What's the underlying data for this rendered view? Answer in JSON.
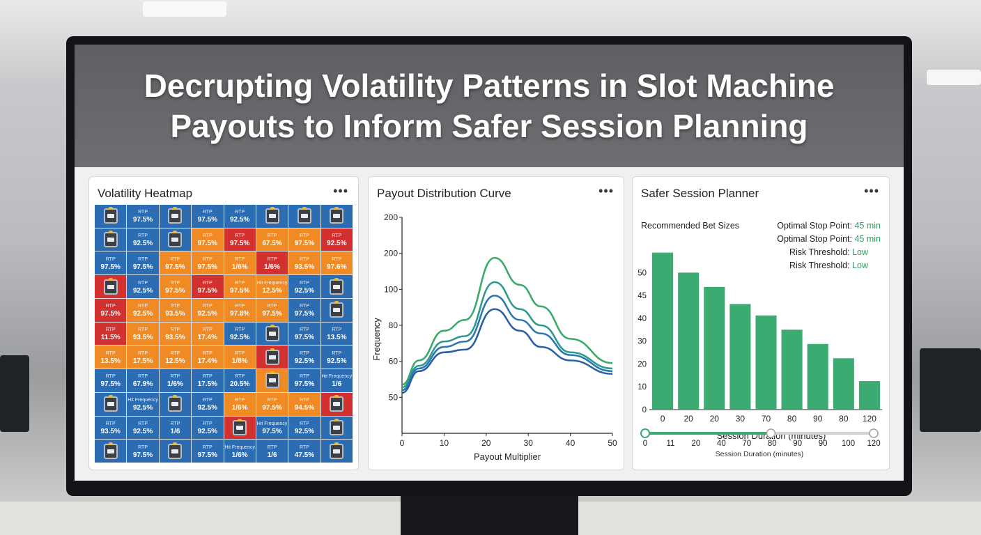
{
  "banner": {
    "line1": "Decrupting Volatility Patterns in Slot Machine",
    "line2": "Payouts to Inform Safer Session Planning"
  },
  "heatmap_panel": {
    "title": "Volatility Heatmap",
    "menu": "•••",
    "colors": {
      "blue": "#2c6cb3",
      "orange": "#f08a24",
      "red": "#d3312f"
    },
    "grid": [
      [
        "b:slot",
        "b:RTP|97.5%",
        "b:slot",
        "b:RTP|97.5%",
        "b:RTP|92.5%",
        "b:slot",
        "b:slot",
        "b:slot"
      ],
      [
        "b:slot",
        "b:RTP|92.5%",
        "b:slot",
        "o:RTP|97.5%",
        "r:RTP|97.5%",
        "o:RTP|67.5%",
        "o:RTP|97.5%",
        "r:RTP|92.5%"
      ],
      [
        "b:RTP|97.5%",
        "b:RTP|97.5%",
        "o:RTP|97.5%",
        "o:RTP|97.5%",
        "o:RTP|1/6%",
        "r:RTP|1/6%",
        "o:RTP|93.5%",
        "o:RTP|97.6%"
      ],
      [
        "r:slot",
        "b:RTP|92.5%",
        "o:RTP|97.5%",
        "r:RTP|97.5%",
        "o:RTP|97.5%",
        "o:Hit Frequency|12.5%",
        "b:RTP|92.5%",
        "b:slot"
      ],
      [
        "r:RTP|97.5%",
        "o:RTP|92.5%",
        "o:RTP|93.5%",
        "o:RTP|92.5%",
        "o:RTP|97.8%",
        "o:RTP|97.5%",
        "b:RTP|97.5%",
        "b:slot"
      ],
      [
        "r:RTP|11.5%",
        "o:RTP|93.5%",
        "o:RTP|93.5%",
        "o:RTP|17.4%",
        "b:RTP|92.5%",
        "b:slot",
        "b:RTP|97.5%",
        "b:RTP|13.5%"
      ],
      [
        "o:RTP|13.5%",
        "o:RTP|17.5%",
        "o:RTP|12.5%",
        "o:RTP|17.4%",
        "o:RTP|1/8%",
        "r:slot",
        "b:RTP|92.5%",
        "b:RTP|92.5%"
      ],
      [
        "b:RTP|97.5%",
        "b:RTP|67.9%",
        "b:RTP|1/6%",
        "b:RTP|17.5%",
        "b:RTP|20.5%",
        "o:slot",
        "b:RTP|97.5%",
        "b:Hit Frequency|1/6"
      ],
      [
        "b:slot",
        "b:Hit Frequency|92.5%",
        "b:slot",
        "b:RTP|92.5%",
        "o:RTP|1/6%",
        "o:RTP|97.5%",
        "o:RTP|94.5%",
        "r:slot"
      ],
      [
        "b:RTP|93.5%",
        "b:RTP|92.5%",
        "b:RTP|1/6",
        "b:RTP|92.5%",
        "r:slot",
        "b:Hit Frequency|97.5%",
        "b:RTP|92.5%",
        "b:slot"
      ],
      [
        "b:slot",
        "b:RTP|97.5%",
        "b:slot",
        "b:RTP|97.5%",
        "b:Hit Frequency|1/6%",
        "b:RTP|1/6",
        "b:RTP|47.5%",
        "b:slot"
      ]
    ]
  },
  "distribution_panel": {
    "title": "Payout Distribution Curve",
    "menu": "•••",
    "chart_data": {
      "type": "line",
      "xlabel": "Payout Multiplier",
      "ylabel": "Frequency",
      "x_ticks": [
        "0",
        "10",
        "20",
        "30",
        "40",
        "50"
      ],
      "y_ticks": [
        "50",
        "60",
        "80",
        "100",
        "200",
        "200"
      ],
      "xlim": [
        0,
        50
      ],
      "series": [
        {
          "color": "#3aaa6a",
          "points": [
            [
              0,
              48
            ],
            [
              4,
              57
            ],
            [
              10,
              68
            ],
            [
              15,
              72
            ],
            [
              22,
              95
            ],
            [
              28,
              85
            ],
            [
              33,
              77
            ],
            [
              40,
              65
            ],
            [
              50,
              56
            ]
          ]
        },
        {
          "color": "#2e9a8e",
          "points": [
            [
              0,
              47
            ],
            [
              4,
              55
            ],
            [
              10,
              64
            ],
            [
              15,
              66
            ],
            [
              22,
              86
            ],
            [
              28,
              76
            ],
            [
              33,
              70
            ],
            [
              40,
              60
            ],
            [
              50,
              54
            ]
          ]
        },
        {
          "color": "#2b78b0",
          "points": [
            [
              0,
              46
            ],
            [
              4,
              54
            ],
            [
              10,
              62
            ],
            [
              15,
              64
            ],
            [
              22,
              81
            ],
            [
              28,
              72
            ],
            [
              33,
              67
            ],
            [
              40,
              59
            ],
            [
              50,
              53
            ]
          ]
        },
        {
          "color": "#2b5fa6",
          "points": [
            [
              0,
              45
            ],
            [
              4,
              53
            ],
            [
              10,
              60
            ],
            [
              15,
              61
            ],
            [
              22,
              76
            ],
            [
              28,
              68
            ],
            [
              33,
              62
            ],
            [
              40,
              57
            ],
            [
              50,
              52
            ]
          ]
        }
      ]
    }
  },
  "planner_panel": {
    "title": "Safer Session Planner",
    "menu": "•••",
    "bet_label": "Recommended Bet Sizes",
    "stats": [
      {
        "label": "Optimal Stop Point:",
        "value": "45 min"
      },
      {
        "label": "Optimal Stop Point:",
        "value": "45 min"
      },
      {
        "label": "Risk Threshold:",
        "value": "Low"
      },
      {
        "label": "Risk Threshold:",
        "value": "Low"
      }
    ],
    "chart_data": {
      "type": "bar",
      "categories": [
        "0",
        "20",
        "20",
        "30",
        "70",
        "80",
        "90",
        "80",
        "120"
      ],
      "values": [
        55,
        48,
        43,
        37,
        33,
        28,
        23,
        18,
        10
      ],
      "y_ticks": [
        "0",
        "10",
        "20",
        "30",
        "40",
        "45",
        "50"
      ],
      "ylim": [
        0,
        62
      ],
      "xlabel": "Session Duration (minutes)",
      "bar_color": "#3cab72"
    },
    "slider": {
      "ticks": [
        "0",
        "11",
        "20",
        "40",
        "70",
        "80",
        "90",
        "90",
        "100",
        "120"
      ],
      "value_fraction": 0.55,
      "label": "Session Duration (minutes)"
    }
  }
}
